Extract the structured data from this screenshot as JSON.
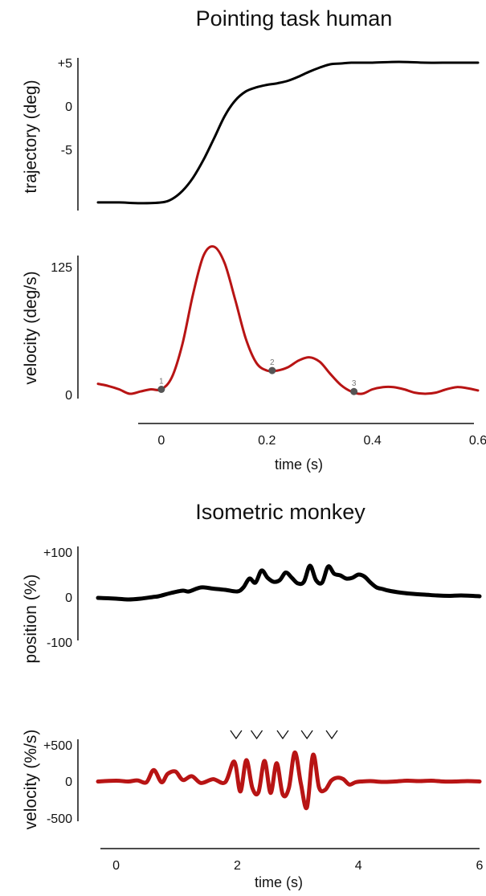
{
  "colors": {
    "trajectory": "#000000",
    "velocity": "#b81414",
    "marker": "#555555"
  },
  "titles": {
    "top": "Pointing task human",
    "bottom": "Isometric monkey"
  },
  "chart_data": [
    {
      "type": "line",
      "title": "Pointing task human",
      "xlabel": "",
      "ylabel": "trajectory (deg)",
      "xlim": [
        -0.12,
        0.6
      ],
      "ylim": [
        -12.5,
        5
      ],
      "yticks": [
        {
          "v": 5,
          "label": "+5"
        },
        {
          "v": 0,
          "label": "0"
        },
        {
          "v": -5,
          "label": "-5"
        }
      ],
      "series": [
        {
          "x": [
            -0.12,
            -0.08,
            -0.04,
            0,
            0.02,
            0.04,
            0.06,
            0.08,
            0.1,
            0.12,
            0.14,
            0.16,
            0.18,
            0.2,
            0.22,
            0.24,
            0.26,
            0.28,
            0.3,
            0.32,
            0.34,
            0.36,
            0.4,
            0.45,
            0.5,
            0.55,
            0.6
          ],
          "y": [
            -12,
            -12,
            -12.1,
            -12,
            -11.6,
            -10.6,
            -9,
            -6.8,
            -4.2,
            -1.5,
            0.4,
            1.5,
            2,
            2.3,
            2.5,
            2.8,
            3.3,
            3.9,
            4.4,
            4.8,
            4.9,
            5,
            5,
            5.1,
            5,
            5,
            5
          ]
        }
      ]
    },
    {
      "type": "line",
      "xlabel": "time (s)",
      "ylabel": "velocity (deg/s)",
      "xlim": [
        -0.12,
        0.6
      ],
      "ylim": [
        0,
        125
      ],
      "xticks": [
        0,
        0.2,
        0.4,
        0.6
      ],
      "yticks": [
        {
          "v": 125,
          "label": "125"
        },
        {
          "v": 0,
          "label": "0"
        }
      ],
      "series": [
        {
          "x": [
            -0.12,
            -0.1,
            -0.08,
            -0.06,
            -0.04,
            -0.02,
            0,
            0.02,
            0.04,
            0.06,
            0.08,
            0.1,
            0.12,
            0.14,
            0.16,
            0.18,
            0.2,
            0.22,
            0.24,
            0.26,
            0.28,
            0.3,
            0.32,
            0.34,
            0.36,
            0.38,
            0.4,
            0.42,
            0.44,
            0.46,
            0.48,
            0.5,
            0.52,
            0.54,
            0.56,
            0.58,
            0.6
          ],
          "y": [
            9,
            7,
            4,
            0,
            2,
            4,
            4,
            15,
            45,
            90,
            125,
            133,
            118,
            85,
            50,
            28,
            21,
            21,
            24,
            30,
            33,
            29,
            18,
            8,
            2,
            0,
            4,
            6,
            6,
            4,
            1,
            0,
            1,
            4,
            6,
            5,
            3
          ]
        }
      ],
      "markers": [
        {
          "label": "1",
          "x": 0,
          "y": 4
        },
        {
          "label": "2",
          "x": 0.21,
          "y": 21
        },
        {
          "label": "3",
          "x": 0.365,
          "y": 2
        }
      ]
    },
    {
      "type": "line",
      "title": "Isometric monkey",
      "xlabel": "",
      "ylabel": "position (%)",
      "xlim": [
        -0.3,
        6
      ],
      "ylim": [
        -100,
        100
      ],
      "yticks": [
        {
          "v": 100,
          "label": "+100"
        },
        {
          "v": 0,
          "label": "0"
        },
        {
          "v": -100,
          "label": "-100"
        }
      ],
      "series": [
        {
          "x": [
            -0.3,
            0,
            0.2,
            0.4,
            0.6,
            0.7,
            0.9,
            1.1,
            1.2,
            1.4,
            1.6,
            1.8,
            2,
            2.1,
            2.2,
            2.3,
            2.4,
            2.5,
            2.6,
            2.7,
            2.8,
            2.9,
            3,
            3.1,
            3.2,
            3.3,
            3.4,
            3.5,
            3.6,
            3.7,
            3.8,
            3.9,
            4,
            4.1,
            4.2,
            4.3,
            4.4,
            4.5,
            4.7,
            4.9,
            5.1,
            5.3,
            5.5,
            5.7,
            6
          ],
          "y": [
            -8,
            -10,
            -12,
            -10,
            -6,
            -4,
            4,
            10,
            8,
            18,
            15,
            12,
            8,
            18,
            40,
            30,
            60,
            42,
            32,
            36,
            55,
            42,
            28,
            32,
            72,
            36,
            30,
            70,
            52,
            48,
            40,
            42,
            50,
            45,
            30,
            18,
            14,
            10,
            5,
            2,
            0,
            -2,
            -3,
            -2,
            -4
          ]
        }
      ]
    },
    {
      "type": "line",
      "xlabel": "time (s)",
      "ylabel": "velocity (%/s)",
      "xlim": [
        -0.3,
        6
      ],
      "ylim": [
        -500,
        500
      ],
      "xticks": [
        0,
        2,
        4,
        6
      ],
      "yticks": [
        {
          "v": 500,
          "label": "+500"
        },
        {
          "v": 0,
          "label": "0"
        },
        {
          "v": -500,
          "label": "-500"
        }
      ],
      "series": [
        {
          "x": [
            -0.3,
            0,
            0.2,
            0.35,
            0.5,
            0.62,
            0.75,
            0.85,
            0.98,
            1.1,
            1.25,
            1.4,
            1.6,
            1.8,
            1.95,
            2.05,
            2.15,
            2.25,
            2.35,
            2.45,
            2.55,
            2.65,
            2.75,
            2.85,
            2.95,
            3.05,
            3.15,
            3.25,
            3.35,
            3.45,
            3.55,
            3.65,
            3.75,
            3.85,
            3.95,
            4.05,
            4.2,
            4.4,
            4.6,
            4.8,
            5,
            5.2,
            5.4,
            5.6,
            5.8,
            6
          ],
          "y": [
            0,
            10,
            0,
            15,
            -10,
            150,
            -10,
            100,
            130,
            20,
            70,
            -20,
            30,
            -10,
            260,
            -130,
            280,
            -90,
            -140,
            270,
            -150,
            240,
            -170,
            -90,
            380,
            -30,
            -340,
            350,
            -80,
            -110,
            10,
            50,
            30,
            -40,
            -10,
            0,
            5,
            -5,
            0,
            10,
            5,
            10,
            0,
            0,
            5,
            0
          ]
        }
      ],
      "peak_markers": {
        "symbol": "∨",
        "x": [
          1.98,
          2.32,
          2.75,
          3.15,
          3.56
        ]
      }
    }
  ]
}
